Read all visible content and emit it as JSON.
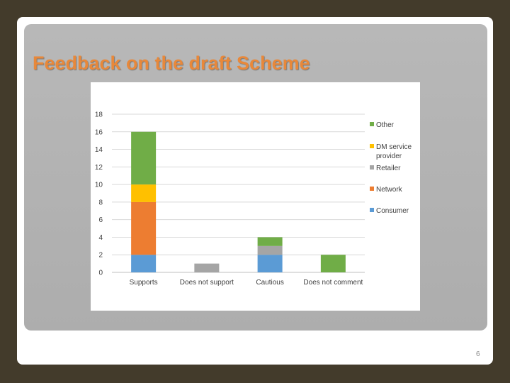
{
  "slide": {
    "title": "Feedback on the draft Scheme",
    "page_number": "6"
  },
  "colors": {
    "title": "#e8883a",
    "Consumer": "#5b9bd5",
    "Network": "#ed7d31",
    "Retailer": "#a5a5a5",
    "DM service provider": "#ffc000",
    "Other": "#70ad47"
  },
  "chart_data": {
    "type": "bar",
    "stacked": true,
    "categories": [
      "Supports",
      "Does not support",
      "Cautious",
      "Does not comment"
    ],
    "series": [
      {
        "name": "Consumer",
        "values": [
          2,
          0,
          2,
          0
        ]
      },
      {
        "name": "Network",
        "values": [
          6,
          0,
          0,
          0
        ]
      },
      {
        "name": "Retailer",
        "values": [
          0,
          1,
          1,
          0
        ]
      },
      {
        "name": "DM service provider",
        "values": [
          2,
          0,
          0,
          0
        ]
      },
      {
        "name": "Other",
        "values": [
          6,
          0,
          1,
          2
        ]
      }
    ],
    "ylim": [
      0,
      18
    ],
    "yticks": [
      0,
      2,
      4,
      6,
      8,
      10,
      12,
      14,
      16,
      18
    ],
    "grid": true,
    "legend": "right"
  }
}
